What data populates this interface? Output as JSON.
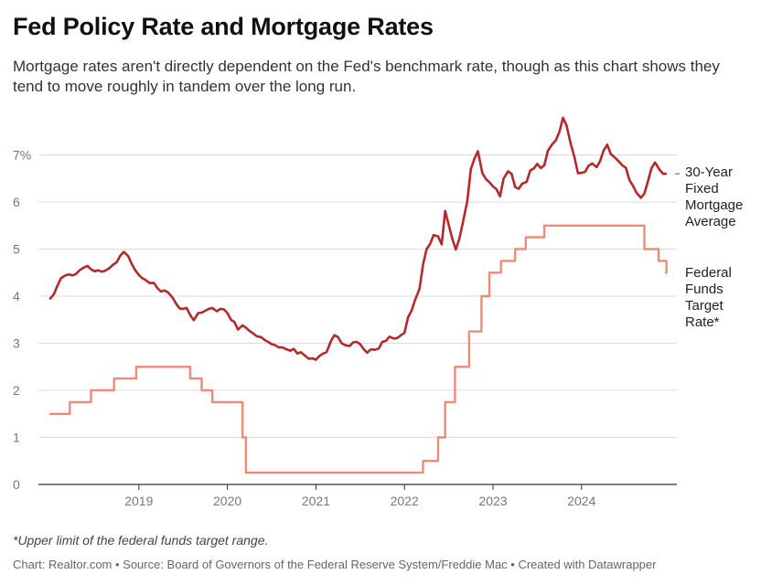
{
  "header": {
    "title": "Fed Policy Rate and Mortgage Rates",
    "subtitle": "Mortgage rates aren't directly dependent on the Fed's benchmark rate, though as this chart shows they tend to move roughly in tandem over the long run."
  },
  "notes": {
    "footnote": "*Upper limit of the federal funds target range.",
    "credit": "Chart: Realtor.com • Source: Board of Governors of the Federal Reserve System/Freddie Mac • Created with Datawrapper"
  },
  "chart_data": {
    "type": "line",
    "title": "Fed Policy Rate and Mortgage Rates",
    "xlabel": "",
    "ylabel": "",
    "xlim": [
      2018.0,
      2024.95
    ],
    "ylim": [
      0,
      7.5
    ],
    "y_ticks": [
      0,
      1,
      2,
      3,
      4,
      5,
      6,
      7
    ],
    "y_tick_labels": [
      "0",
      "1",
      "2",
      "3",
      "4",
      "5",
      "6",
      "7%"
    ],
    "x_ticks": [
      2019,
      2020,
      2021,
      2022,
      2023,
      2024
    ],
    "x_tick_labels": [
      "2019",
      "2020",
      "2021",
      "2022",
      "2023",
      "2024"
    ],
    "grid": "horizontal",
    "legend": "direct labels at right end of lines",
    "colors": {
      "mortgage": "#b5282c",
      "fed": "#ef8a78",
      "grid": "#dcdcdc",
      "axis": "#333333"
    },
    "series": [
      {
        "name": "30-Year Fixed Mortgage Average",
        "label_lines": [
          "30-Year",
          "Fixed",
          "Mortgage",
          "Average"
        ],
        "color": "#b5282c",
        "x": [
          2018.0,
          2018.04,
          2018.08,
          2018.12,
          2018.17,
          2018.21,
          2018.25,
          2018.29,
          2018.33,
          2018.38,
          2018.42,
          2018.46,
          2018.5,
          2018.54,
          2018.58,
          2018.62,
          2018.67,
          2018.71,
          2018.75,
          2018.79,
          2018.83,
          2018.88,
          2018.92,
          2018.96,
          2019.0,
          2019.04,
          2019.08,
          2019.12,
          2019.17,
          2019.21,
          2019.25,
          2019.29,
          2019.33,
          2019.38,
          2019.42,
          2019.46,
          2019.5,
          2019.54,
          2019.58,
          2019.62,
          2019.67,
          2019.71,
          2019.75,
          2019.79,
          2019.83,
          2019.88,
          2019.92,
          2019.96,
          2020.0,
          2020.04,
          2020.08,
          2020.12,
          2020.17,
          2020.21,
          2020.25,
          2020.29,
          2020.33,
          2020.38,
          2020.42,
          2020.46,
          2020.5,
          2020.54,
          2020.58,
          2020.62,
          2020.67,
          2020.71,
          2020.75,
          2020.79,
          2020.83,
          2020.88,
          2020.92,
          2020.96,
          2021.0,
          2021.04,
          2021.08,
          2021.12,
          2021.17,
          2021.21,
          2021.25,
          2021.29,
          2021.33,
          2021.38,
          2021.42,
          2021.46,
          2021.5,
          2021.54,
          2021.58,
          2021.62,
          2021.67,
          2021.71,
          2021.75,
          2021.79,
          2021.83,
          2021.88,
          2021.92,
          2021.96,
          2022.0,
          2022.04,
          2022.08,
          2022.12,
          2022.17,
          2022.21,
          2022.25,
          2022.29,
          2022.33,
          2022.38,
          2022.42,
          2022.46,
          2022.5,
          2022.54,
          2022.58,
          2022.62,
          2022.67,
          2022.71,
          2022.75,
          2022.79,
          2022.83,
          2022.88,
          2022.92,
          2022.96,
          2023.0,
          2023.04,
          2023.08,
          2023.12,
          2023.17,
          2023.21,
          2023.25,
          2023.29,
          2023.33,
          2023.38,
          2023.42,
          2023.46,
          2023.5,
          2023.54,
          2023.58,
          2023.62,
          2023.67,
          2023.71,
          2023.75,
          2023.79,
          2023.83,
          2023.88,
          2023.92,
          2023.96,
          2024.0,
          2024.04,
          2024.08,
          2024.12,
          2024.17,
          2024.21,
          2024.25,
          2024.29,
          2024.33,
          2024.38,
          2024.42,
          2024.46,
          2024.5,
          2024.54,
          2024.58,
          2024.62,
          2024.67,
          2024.71,
          2024.75,
          2024.79,
          2024.83,
          2024.88,
          2024.92,
          2024.95
        ],
        "values": [
          3.95,
          4.04,
          4.22,
          4.38,
          4.44,
          4.46,
          4.44,
          4.47,
          4.55,
          4.61,
          4.64,
          4.57,
          4.53,
          4.55,
          4.52,
          4.54,
          4.6,
          4.67,
          4.72,
          4.86,
          4.94,
          4.85,
          4.68,
          4.55,
          4.45,
          4.38,
          4.34,
          4.28,
          4.28,
          4.17,
          4.1,
          4.12,
          4.08,
          3.97,
          3.84,
          3.74,
          3.73,
          3.75,
          3.6,
          3.49,
          3.64,
          3.65,
          3.69,
          3.73,
          3.75,
          3.68,
          3.73,
          3.72,
          3.64,
          3.5,
          3.45,
          3.29,
          3.38,
          3.33,
          3.26,
          3.21,
          3.15,
          3.13,
          3.07,
          3.03,
          2.98,
          2.96,
          2.91,
          2.91,
          2.87,
          2.84,
          2.88,
          2.78,
          2.81,
          2.73,
          2.67,
          2.68,
          2.65,
          2.73,
          2.78,
          2.81,
          3.05,
          3.17,
          3.13,
          3.0,
          2.96,
          2.94,
          3.02,
          3.03,
          2.98,
          2.87,
          2.8,
          2.87,
          2.86,
          2.89,
          3.03,
          3.05,
          3.14,
          3.1,
          3.11,
          3.17,
          3.22,
          3.55,
          3.69,
          3.92,
          4.16,
          4.67,
          5.0,
          5.11,
          5.3,
          5.27,
          5.1,
          5.81,
          5.51,
          5.22,
          4.99,
          5.22,
          5.66,
          6.02,
          6.7,
          6.92,
          7.08,
          6.61,
          6.49,
          6.42,
          6.33,
          6.27,
          6.12,
          6.5,
          6.65,
          6.6,
          6.32,
          6.28,
          6.39,
          6.43,
          6.67,
          6.71,
          6.81,
          6.72,
          6.78,
          7.09,
          7.23,
          7.31,
          7.49,
          7.79,
          7.63,
          7.22,
          6.95,
          6.61,
          6.62,
          6.64,
          6.77,
          6.82,
          6.74,
          6.87,
          7.1,
          7.22,
          7.02,
          6.94,
          6.86,
          6.78,
          6.73,
          6.47,
          6.35,
          6.2,
          6.09,
          6.18,
          6.44,
          6.72,
          6.84,
          6.69,
          6.6,
          6.6
        ]
      },
      {
        "name": "Federal Funds Target Rate*",
        "label_lines": [
          "Federal",
          "Funds",
          "Target",
          "Rate*"
        ],
        "color": "#ef8a78",
        "step": true,
        "x": [
          2018.0,
          2018.22,
          2018.46,
          2018.72,
          2018.97,
          2019.58,
          2019.71,
          2019.83,
          2020.17,
          2020.21,
          2022.21,
          2022.38,
          2022.46,
          2022.57,
          2022.73,
          2022.87,
          2022.96,
          2023.09,
          2023.25,
          2023.37,
          2023.58,
          2024.71,
          2024.87,
          2024.96
        ],
        "values": [
          1.5,
          1.75,
          2.0,
          2.25,
          2.5,
          2.25,
          2.0,
          1.75,
          1.0,
          0.25,
          0.5,
          1.0,
          1.75,
          2.5,
          3.25,
          4.0,
          4.5,
          4.75,
          5.0,
          5.25,
          5.5,
          5.0,
          4.75,
          4.5
        ]
      }
    ]
  }
}
